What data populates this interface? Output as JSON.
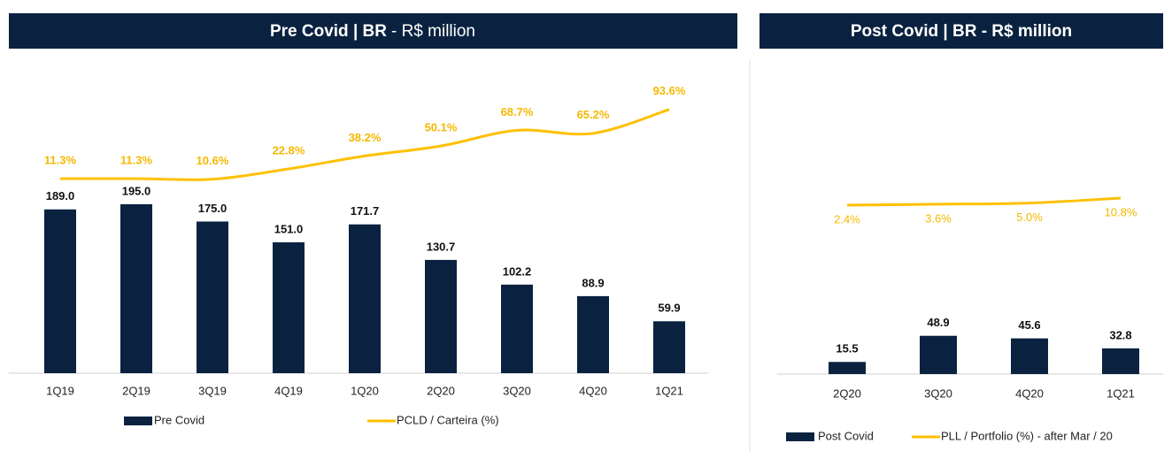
{
  "chart_data": [
    {
      "type": "bar",
      "title_bold": "Pre Covid | BR",
      "title_regular": "- R$ million",
      "categories": [
        "1Q19",
        "2Q19",
        "3Q19",
        "4Q19",
        "1Q20",
        "2Q20",
        "3Q20",
        "4Q20",
        "1Q21"
      ],
      "series": [
        {
          "name": "Pre Covid",
          "type": "bar",
          "color": "#0a2240",
          "values": [
            189.0,
            195.0,
            175.0,
            151.0,
            171.7,
            130.7,
            102.2,
            88.9,
            59.9
          ],
          "value_labels": [
            "189.0",
            "195.0",
            "175.0",
            "151.0",
            "171.7",
            "130.7",
            "102.2",
            "88.9",
            "59.9"
          ]
        },
        {
          "name": "PCLD / Carteira (%)",
          "type": "line",
          "color": "#ffc000",
          "values": [
            11.3,
            11.3,
            10.6,
            22.8,
            38.2,
            50.1,
            68.7,
            65.2,
            93.6
          ],
          "value_labels": [
            "11.3%",
            "11.3%",
            "10.6%",
            "22.8%",
            "38.2%",
            "50.1%",
            "68.7%",
            "65.2%",
            "93.6%"
          ]
        }
      ]
    },
    {
      "type": "bar",
      "title_bold": "Post Covid | BR - R$ million",
      "categories": [
        "2Q20",
        "3Q20",
        "4Q20",
        "1Q21"
      ],
      "series": [
        {
          "name": "Post Covid",
          "type": "bar",
          "color": "#0a2240",
          "values": [
            15.5,
            48.9,
            45.6,
            32.8
          ],
          "value_labels": [
            "15.5",
            "48.9",
            "45.6",
            "32.8"
          ]
        },
        {
          "name": "PLL / Portfolio (%) - after Mar / 20",
          "type": "line",
          "color": "#ffc000",
          "values": [
            2.4,
            3.6,
            5.0,
            10.8
          ],
          "value_labels": [
            "2.4%",
            "3.6%",
            "5.0%",
            "10.8%"
          ]
        }
      ]
    }
  ]
}
